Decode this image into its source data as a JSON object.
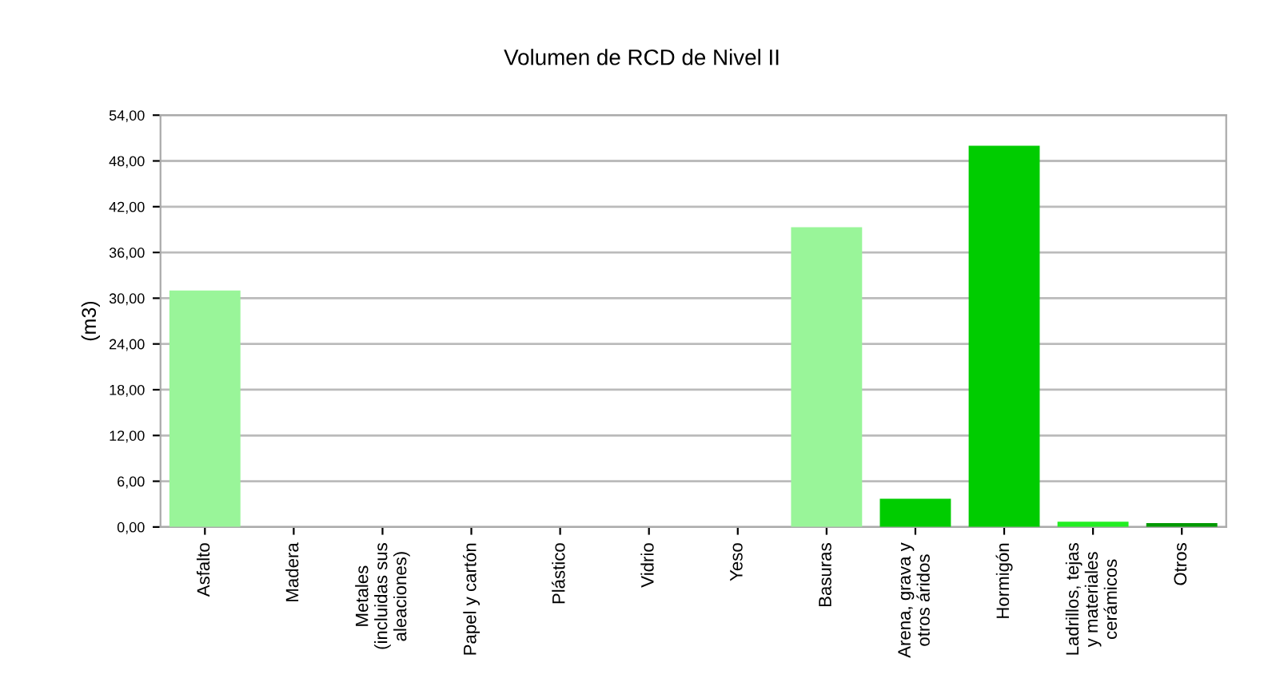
{
  "chart_data": {
    "type": "bar",
    "title": "Volumen de RCD de Nivel II",
    "ylabel": "(m3)",
    "categories": [
      "Asfalto",
      "Madera",
      "Metales\n(incluidas sus\naleaciones)",
      "Papel y cartón",
      "Plástico",
      "Vidrio",
      "Yeso",
      "Basuras",
      "Arena, grava y\notros áridos",
      "Hormigón",
      "Ladrillos, tejas\ny materiales\ncerámicos",
      "Otros"
    ],
    "values": [
      31,
      0,
      0,
      0,
      0,
      0,
      0,
      39.3,
      3.7,
      50,
      0.7,
      0.5
    ],
    "colors": [
      "#99f599",
      "#c8f5c8",
      "#c8f5c8",
      "#c8f5c8",
      "#c8f5c8",
      "#c8f5c8",
      "#c8f5c8",
      "#99f599",
      "#00cc00",
      "#00cc00",
      "#22ee22",
      "#009900"
    ],
    "ylim": [
      0,
      54
    ],
    "yticks": [
      {
        "value": 0,
        "label": "0,00"
      },
      {
        "value": 6,
        "label": "6,00"
      },
      {
        "value": 12,
        "label": "12,00"
      },
      {
        "value": 18,
        "label": "18,00"
      },
      {
        "value": 24,
        "label": "24,00"
      },
      {
        "value": 30,
        "label": "30,00"
      },
      {
        "value": 36,
        "label": "36,00"
      },
      {
        "value": 42,
        "label": "42,00"
      },
      {
        "value": 48,
        "label": "48,00"
      },
      {
        "value": 54,
        "label": "54,00"
      }
    ],
    "grid": "y"
  }
}
